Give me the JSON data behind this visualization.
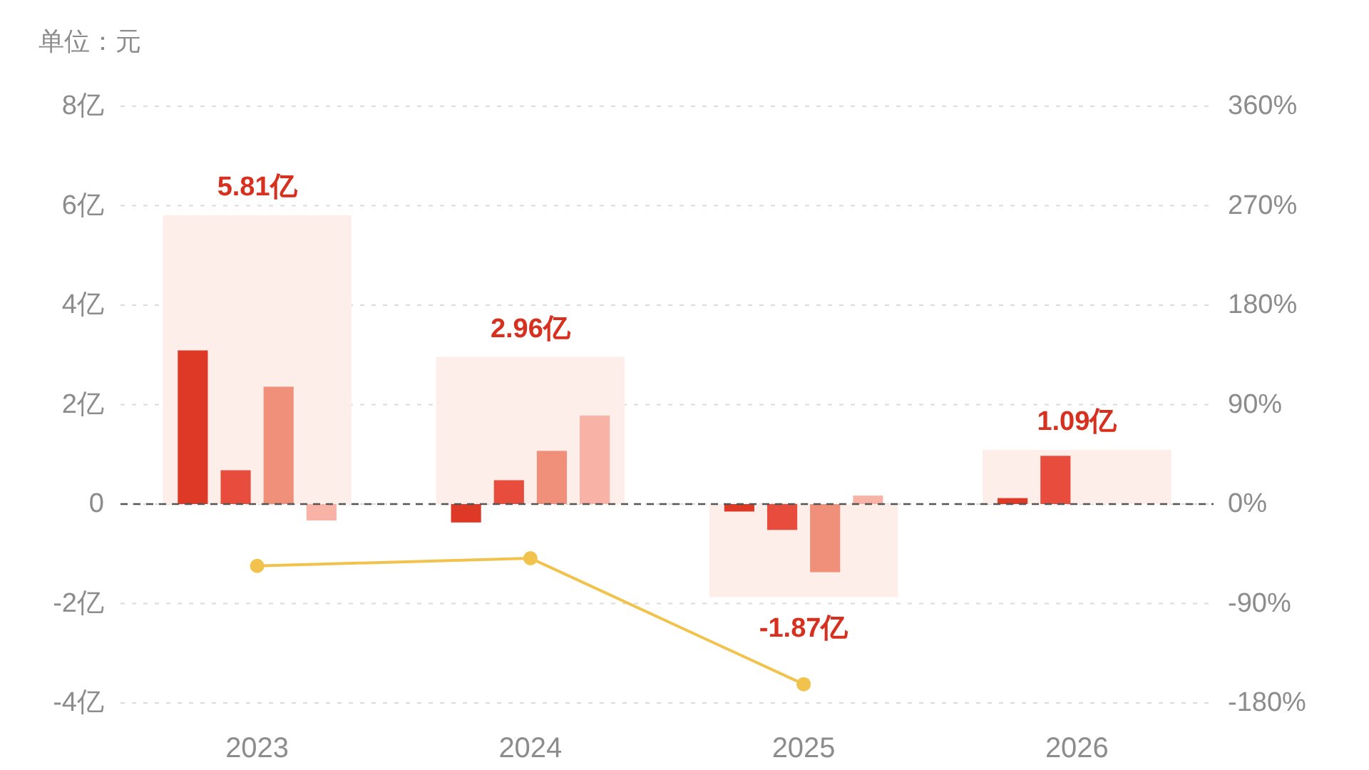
{
  "chart_data": {
    "type": "bar",
    "ylabel": "单位：元",
    "categories": [
      "2023",
      "2024",
      "2025",
      "2026"
    ],
    "series": [
      {
        "color": "#fdeee9",
        "values": [
          5.81,
          2.96,
          -1.87,
          1.09
        ],
        "value_labels": [
          "5.81亿",
          "2.96亿",
          "-1.87亿",
          "1.09亿"
        ]
      },
      {
        "color": "#de3826",
        "values": [
          3.09,
          -0.37,
          -0.15,
          0.12
        ]
      },
      {
        "color": "#e84c3d",
        "values": [
          0.68,
          0.48,
          -0.52,
          0.97
        ]
      },
      {
        "color": "#f0907a",
        "values": [
          2.36,
          1.07,
          -1.37,
          null
        ]
      },
      {
        "color": "#f8b3a6",
        "values": [
          -0.33,
          1.78,
          0.17,
          null
        ]
      },
      {
        "type": "line",
        "axis": "y2",
        "color": "#f1c24c",
        "marker": "circle",
        "values": [
          -56,
          -49,
          -163,
          null
        ]
      }
    ],
    "ylim": [
      -4,
      8
    ],
    "yticks": [
      {
        "value": -4,
        "label": "-4亿"
      },
      {
        "value": -2,
        "label": "-2亿"
      },
      0,
      {
        "value": 2,
        "label": "2亿"
      },
      {
        "value": 4,
        "label": "4亿"
      },
      {
        "value": 6,
        "label": "6亿"
      },
      {
        "value": 8,
        "label": "8亿"
      }
    ],
    "y2lim": [
      -180,
      360
    ],
    "y2ticks": [
      {
        "value": -180,
        "label": "-180%"
      },
      {
        "value": -90,
        "label": "-90%"
      },
      {
        "value": 0,
        "label": "0%"
      },
      {
        "value": 90,
        "label": "90%"
      },
      {
        "value": 180,
        "label": "180%"
      },
      {
        "value": 270,
        "label": "270%"
      },
      {
        "value": 360,
        "label": "360%"
      }
    ],
    "grid": "y",
    "ref_lines": [
      {
        "axis": "y",
        "value": 0,
        "color": "#555555",
        "line_style": "dashed"
      }
    ]
  }
}
